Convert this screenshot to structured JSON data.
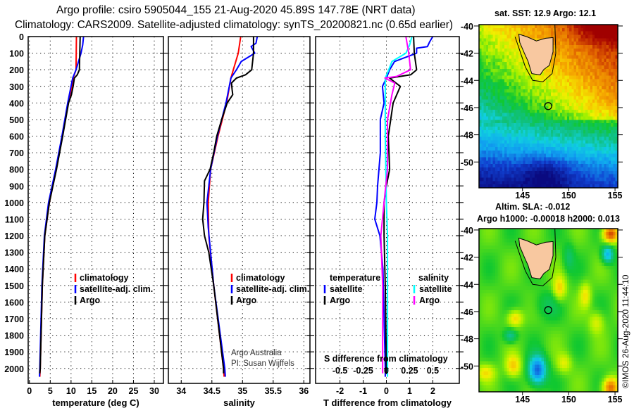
{
  "header": {
    "title_line1": "Argo profile: csiro 5905044_155 21-Aug-2020 45.89S 147.78E (NRT data)",
    "title_line2": "Climatology: CARS2009. Satellite-adjusted climatology: synTS_20200821.nc (0.65d earlier)"
  },
  "depth_axis": {
    "ticks": [
      0,
      100,
      200,
      300,
      400,
      500,
      600,
      700,
      800,
      900,
      1000,
      1100,
      1200,
      1300,
      1400,
      1500,
      1600,
      1700,
      1800,
      1900,
      2000
    ],
    "labels": [
      "0",
      "100",
      "200",
      "300",
      "400",
      "500",
      "600",
      "700",
      "800",
      "900",
      "1000",
      "1100",
      "1200",
      "1300",
      "1400",
      "1500",
      "1600",
      "1700",
      "1800",
      "1900",
      "2000"
    ],
    "ylim": [
      0,
      2090
    ]
  },
  "chart_data": [
    {
      "type": "line",
      "title": "",
      "xlabel": "temperature (deg C)",
      "ylabel": "depth",
      "xlim": [
        -0.3,
        32.2
      ],
      "xticks": [
        0,
        5,
        10,
        15,
        20,
        25,
        30
      ],
      "xtick_labels": [
        "0",
        "5",
        "10",
        "15",
        "20",
        "25",
        "30"
      ],
      "grid": true,
      "legend": [
        "climatology",
        "satellite-adj. clim.",
        "Argo"
      ],
      "series": [
        {
          "name": "climatology",
          "color": "#ff0000",
          "points": [
            [
              0,
              11.3
            ],
            [
              200,
              11.2
            ],
            [
              250,
              10.5
            ],
            [
              300,
              10.2
            ],
            [
              400,
              9.3
            ],
            [
              600,
              7.9
            ],
            [
              800,
              6.4
            ],
            [
              1000,
              4.8
            ],
            [
              1200,
              3.7
            ],
            [
              1500,
              3.1
            ],
            [
              2000,
              2.6
            ],
            [
              2050,
              2.5
            ]
          ]
        },
        {
          "name": "satellite-adj. clim.",
          "color": "#0000ff",
          "points": [
            [
              0,
              13.0
            ],
            [
              50,
              12.8
            ],
            [
              100,
              12.4
            ],
            [
              200,
              11.2
            ],
            [
              250,
              10.4
            ],
            [
              300,
              10.0
            ],
            [
              400,
              9.2
            ],
            [
              600,
              7.8
            ],
            [
              800,
              6.3
            ],
            [
              1000,
              4.6
            ],
            [
              1200,
              3.6
            ],
            [
              1500,
              3.0
            ],
            [
              2000,
              2.5
            ],
            [
              2050,
              2.4
            ]
          ]
        },
        {
          "name": "Argo",
          "color": "#000000",
          "points": [
            [
              0,
              12.2
            ],
            [
              200,
              12.0
            ],
            [
              230,
              11.5
            ],
            [
              250,
              10.8
            ],
            [
              300,
              10.5
            ],
            [
              350,
              10.1
            ],
            [
              400,
              9.4
            ],
            [
              600,
              8.0
            ],
            [
              800,
              6.5
            ],
            [
              1000,
              4.8
            ],
            [
              1200,
              3.7
            ],
            [
              1500,
              3.1
            ],
            [
              2000,
              2.6
            ],
            [
              2030,
              2.5
            ]
          ]
        }
      ]
    },
    {
      "type": "line",
      "title": "",
      "xlabel": "salinity",
      "ylabel": "depth",
      "xlim": [
        33.79,
        36.1
      ],
      "xticks": [
        34,
        34.5,
        35,
        35.5,
        36
      ],
      "xtick_labels": [
        "34",
        "34.5",
        "35",
        "35.5",
        "36"
      ],
      "grid": true,
      "legend": [
        "climatology",
        "satellite-adj. clim.",
        "Argo"
      ],
      "series": [
        {
          "name": "climatology",
          "color": "#ff0000",
          "points": [
            [
              0,
              34.97
            ],
            [
              100,
              34.93
            ],
            [
              200,
              34.85
            ],
            [
              250,
              34.81
            ],
            [
              400,
              34.74
            ],
            [
              600,
              34.6
            ],
            [
              800,
              34.48
            ],
            [
              1000,
              34.44
            ],
            [
              1200,
              34.45
            ],
            [
              1500,
              34.53
            ],
            [
              2000,
              34.69
            ],
            [
              2050,
              34.7
            ]
          ]
        },
        {
          "name": "satellite-adj. clim.",
          "color": "#0000ff",
          "points": [
            [
              0,
              35.24
            ],
            [
              40,
              35.22
            ],
            [
              60,
              35.14
            ],
            [
              100,
              35.2
            ],
            [
              150,
              34.98
            ],
            [
              200,
              34.9
            ],
            [
              250,
              34.81
            ],
            [
              400,
              34.73
            ],
            [
              600,
              34.59
            ],
            [
              800,
              34.48
            ],
            [
              1000,
              34.42
            ],
            [
              1150,
              34.44
            ],
            [
              1500,
              34.53
            ],
            [
              2000,
              34.71
            ],
            [
              2050,
              34.72
            ]
          ]
        },
        {
          "name": "Argo",
          "color": "#000000",
          "points": [
            [
              0,
              35.18
            ],
            [
              100,
              35.18
            ],
            [
              200,
              35.15
            ],
            [
              230,
              35.05
            ],
            [
              250,
              34.9
            ],
            [
              280,
              34.82
            ],
            [
              320,
              34.83
            ],
            [
              350,
              34.84
            ],
            [
              400,
              34.75
            ],
            [
              500,
              34.66
            ],
            [
              600,
              34.58
            ],
            [
              700,
              34.53
            ],
            [
              800,
              34.47
            ],
            [
              870,
              34.38
            ],
            [
              1000,
              34.37
            ],
            [
              1100,
              34.35
            ],
            [
              1200,
              34.38
            ],
            [
              1300,
              34.45
            ],
            [
              1500,
              34.53
            ],
            [
              2000,
              34.69
            ],
            [
              2030,
              34.69
            ]
          ]
        }
      ]
    },
    {
      "type": "line",
      "title": "",
      "xlabel": "T difference from climatology",
      "xlabel2": "S difference from climatology",
      "ylabel": "depth",
      "xlim": [
        -3.05,
        3.14
      ],
      "xticks": [
        -2,
        -1,
        0,
        1,
        2
      ],
      "xtick_labels": [
        "-2",
        "-1",
        "0",
        "1",
        "2"
      ],
      "x2ticks": [
        -0.5,
        -0.25,
        0,
        0.25,
        0.5
      ],
      "x2tick_labels": [
        "-0.5",
        "-0.25",
        "0",
        "0.25",
        "0.5"
      ],
      "s_to_t_scale": 4,
      "grid": true,
      "legend_headers": [
        "temperature",
        "salinity"
      ],
      "legend": [
        "satellite",
        "Argo",
        "satellite",
        "Argo"
      ],
      "series": [
        {
          "name": "temperature satellite",
          "axis": "T",
          "color": "#0000ff",
          "points": [
            [
              0,
              2.0
            ],
            [
              30,
              1.87
            ],
            [
              60,
              1.77
            ],
            [
              70,
              1.3
            ],
            [
              100,
              1.3
            ],
            [
              150,
              0.35
            ],
            [
              200,
              0.14
            ],
            [
              250,
              0
            ],
            [
              300,
              -0.17
            ],
            [
              400,
              -0.1
            ],
            [
              500,
              -0.26
            ],
            [
              700,
              -0.26
            ],
            [
              900,
              -0.38
            ],
            [
              1000,
              -0.41
            ],
            [
              1100,
              -0.5
            ],
            [
              1200,
              -0.28
            ],
            [
              1400,
              -0.15
            ],
            [
              2000,
              -0.05
            ],
            [
              2050,
              -0.05
            ]
          ]
        },
        {
          "name": "temperature Argo",
          "axis": "T",
          "color": "#000000",
          "points": [
            [
              0,
              1.17
            ],
            [
              100,
              1.2
            ],
            [
              200,
              1.3
            ],
            [
              230,
              1.05
            ],
            [
              250,
              0.14
            ],
            [
              300,
              0.6
            ],
            [
              400,
              0.29
            ],
            [
              600,
              0.08
            ],
            [
              800,
              0.14
            ],
            [
              900,
              0
            ],
            [
              1000,
              -0.1
            ],
            [
              1200,
              -0.1
            ],
            [
              1500,
              -0.05
            ],
            [
              2000,
              0
            ],
            [
              2030,
              0
            ]
          ]
        },
        {
          "name": "salinity satellite",
          "axis": "S",
          "color": "#00ffff",
          "points": [
            [
              0,
              0.275
            ],
            [
              50,
              0.25
            ],
            [
              100,
              0.21
            ],
            [
              150,
              0.06
            ],
            [
              200,
              0.025
            ],
            [
              250,
              -0.012
            ],
            [
              600,
              -0.012
            ],
            [
              1000,
              0
            ],
            [
              1200,
              0.012
            ],
            [
              2000,
              0.012
            ],
            [
              2050,
              0.012
            ]
          ]
        },
        {
          "name": "salinity Argo",
          "axis": "S",
          "color": "#ff00ff",
          "points": [
            [
              0,
              0.21
            ],
            [
              100,
              0.24
            ],
            [
              200,
              0.26
            ],
            [
              240,
              0.11
            ],
            [
              250,
              -0.015
            ],
            [
              280,
              0.09
            ],
            [
              350,
              0.06
            ],
            [
              500,
              0.012
            ],
            [
              800,
              0.012
            ],
            [
              1000,
              -0.025
            ],
            [
              1200,
              -0.06
            ],
            [
              1500,
              -0.04
            ],
            [
              2000,
              -0.04
            ],
            [
              2030,
              -0.04
            ]
          ]
        }
      ]
    }
  ],
  "annotations": {
    "credit1": "Argo Australia",
    "credit2": "PI: Susan Wijffels"
  },
  "maps": {
    "sst": {
      "title": "sat. SST: 12.9 Argo: 12.1"
    },
    "sla": {
      "title1": "Altim. SLA: -0.012",
      "title2": "Argo h1000: -0.00018 h2000: 0.013"
    },
    "lat_ticks": [
      -40,
      -42,
      -44,
      -46,
      -48,
      -50
    ],
    "lat_labels": [
      "-40",
      "-42",
      "-44",
      "-46",
      "-48",
      "-50"
    ],
    "lon_ticks": [
      145,
      150,
      155
    ],
    "lon_labels": [
      "145",
      "150",
      "155"
    ],
    "argo_position": {
      "lon": 147.78,
      "lat": -45.89
    }
  },
  "footer": {
    "stamp": "©IMOS 26-Aug-2020 11:44:10"
  },
  "colors": {
    "land": "#f8c8a0",
    "climatology": "#ff0000",
    "satellite": "#0000ff",
    "argo": "#000000",
    "sat_salinity": "#00ffff",
    "argo_salinity": "#ff00ff"
  }
}
